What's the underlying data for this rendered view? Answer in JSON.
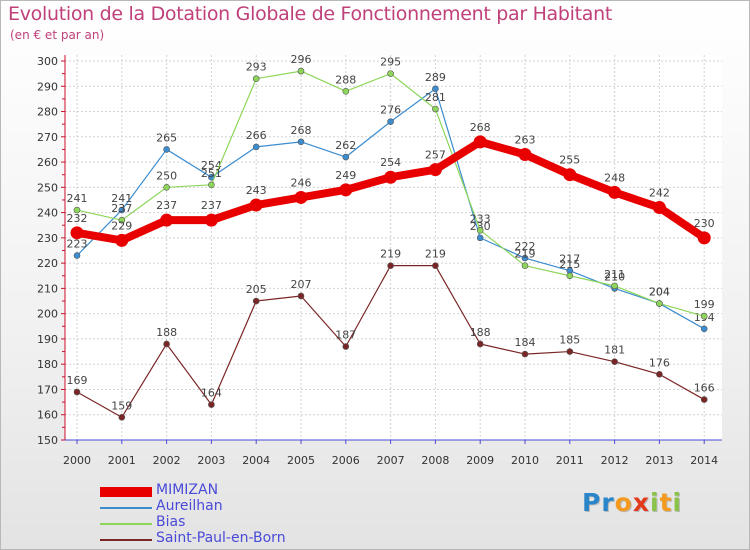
{
  "title": "Evolution de la Dotation Globale de Fonctionnement par Habitant",
  "subtitle": "(en € et par an)",
  "logo": {
    "letters": [
      "P",
      "r",
      "o",
      "x",
      "i",
      "t",
      "i"
    ],
    "colors": [
      "#2b86c9",
      "#2b86c9",
      "#f39a1f",
      "#e13a1c",
      "#8bc34a",
      "#f39a1f",
      "#8bc34a"
    ]
  },
  "chart_data": {
    "type": "line",
    "title": "Evolution de la Dotation Globale de Fonctionnement par Habitant",
    "subtitle": "(en € et par an)",
    "xlabel": "",
    "ylabel": "",
    "x": [
      2000,
      2001,
      2002,
      2003,
      2004,
      2005,
      2006,
      2007,
      2008,
      2009,
      2010,
      2011,
      2012,
      2013,
      2014
    ],
    "x_tick_labels": [
      "2000",
      "2001",
      "2002",
      "2003",
      "2004",
      "2005",
      "2006",
      "2007",
      "2008",
      "2009",
      "2010",
      "2011",
      "2012",
      "2013",
      "2014"
    ],
    "ylim": [
      150,
      300
    ],
    "y_ticks": [
      150,
      160,
      170,
      180,
      190,
      200,
      210,
      220,
      230,
      240,
      250,
      260,
      270,
      280,
      290,
      300
    ],
    "y_tick_labels": [
      "150",
      "160",
      "170",
      "180",
      "190",
      "200",
      "210",
      "220",
      "230",
      "240",
      "250",
      "260",
      "270",
      "280",
      "290",
      "300"
    ],
    "grid": true,
    "legend_position": "bottom-left",
    "series": [
      {
        "name": "Saint-Paul-en-Born",
        "color": "#7b2626",
        "emphasis": false,
        "values": [
          169,
          159,
          188,
          164,
          205,
          207,
          187,
          219,
          219,
          188,
          184,
          185,
          181,
          176,
          166
        ],
        "labels": [
          "169",
          "159",
          "188",
          "164",
          "205",
          "207",
          "187",
          "219",
          "219",
          "188",
          "184",
          "185",
          "181",
          "176",
          "166"
        ]
      },
      {
        "name": "Aureilhan",
        "color": "#3b8dd0",
        "emphasis": false,
        "values": [
          223,
          241,
          265,
          254,
          266,
          268,
          262,
          276,
          289,
          230,
          222,
          217,
          210,
          204,
          194
        ],
        "labels": [
          "223",
          "241",
          "265",
          "254",
          "266",
          "268",
          "262",
          "276",
          "289",
          "230",
          "222",
          "217",
          "210",
          "204",
          "194"
        ]
      },
      {
        "name": "Bias",
        "color": "#8ed65a",
        "emphasis": false,
        "values": [
          241,
          237,
          250,
          251,
          293,
          296,
          288,
          295,
          281,
          233,
          219,
          215,
          211,
          204,
          199
        ],
        "labels": [
          "241",
          "237",
          "250",
          "251",
          "293",
          "296",
          "288",
          "295",
          "281",
          "233",
          "219",
          "215",
          "211",
          "204",
          "199"
        ]
      },
      {
        "name": "MIMIZAN",
        "color": "#e80000",
        "emphasis": true,
        "values": [
          232,
          229,
          237,
          237,
          243,
          246,
          249,
          254,
          257,
          268,
          263,
          255,
          248,
          242,
          230
        ],
        "labels": [
          "232",
          "229",
          "237",
          "237",
          "243",
          "246",
          "249",
          "254",
          "257",
          "268",
          "263",
          "255",
          "248",
          "242",
          "230"
        ]
      }
    ],
    "legend": [
      {
        "name": "MIMIZAN",
        "color": "#e80000",
        "emphasis": true
      },
      {
        "name": "Aureilhan",
        "color": "#3b8dd0",
        "emphasis": false
      },
      {
        "name": "Bias",
        "color": "#8ed65a",
        "emphasis": false
      },
      {
        "name": "Saint-Paul-en-Born",
        "color": "#7b2626",
        "emphasis": false
      }
    ]
  }
}
